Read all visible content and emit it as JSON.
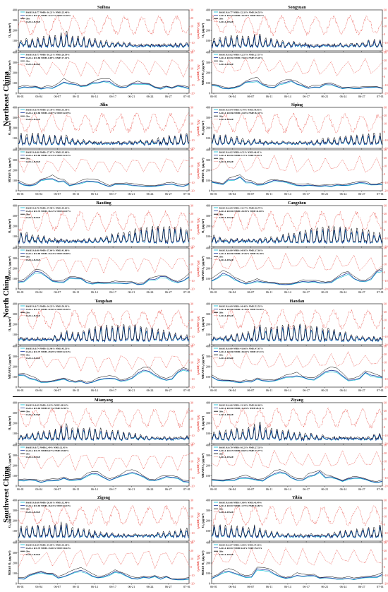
{
  "regions": [
    {
      "name": "Northeast China",
      "cities": [
        "Suihua",
        "Songyuan",
        "Jilin",
        "Siping"
      ]
    },
    {
      "name": "North China",
      "cities": [
        "Baoding",
        "Cangzhou",
        "Tangshan",
        "Handan"
      ]
    },
    {
      "name": "Southwest China",
      "cities": [
        "Mianyang",
        "Ziyang",
        "Zigong",
        "Yibin"
      ]
    }
  ],
  "panels": [
    {
      "city": "Suihua",
      "top_legend": [
        "BASE R:0.77 NMB:-16.21% NME:25.40%",
        "SA1LL R:0.77 NMB:-12.27% NME:24.10%",
        "Obs",
        "SA1LL-BASE"
      ],
      "bottom_legend": [
        "BASE R:0.77 NMB:-16.21% NME:26.59%",
        "SA1LL R:0.80 NMB:-8.09% NME:27.14%",
        "Obs",
        "SA1LL-BASE"
      ]
    },
    {
      "city": "Songyuan",
      "top_legend": [
        "BASE R:0.77 NMB:-22.33% NME:36.53%",
        "SA1LL R:0.78 NMB:-18.54% NME:38.07%",
        "Obs",
        "SA1LL-BASE"
      ],
      "bottom_legend": [
        "BASE R:0.82 NMB:-12.57% NME:27.57%",
        "SA1LL R:0.82 NMB:-7.66% NME:25.20%",
        "Obs",
        "SA1LL-BASE"
      ]
    },
    {
      "city": "Jilin",
      "top_legend": [
        "BASE R:0.78 NMB:-27.39% NME:35.18%",
        "SA1LL R:0.80 NMB:-24.07% NME:42.09%",
        "Obs",
        "SA1LL-BASE"
      ],
      "bottom_legend": [
        "BASE R:0.80 NMB:-27.67% NME:35.00%",
        "SA1LL R:0.80 NMB:-22.23% NME:32.51%",
        "Obs",
        "SA1LL-BASE"
      ]
    },
    {
      "city": "Siping",
      "top_legend": [
        "BASE R:0.84 NMB:-6.79% NME:78.05%",
        "SA1LL R:0.86 NMB:-2.40% NME:82.27%",
        "Obs",
        "SA1LL-BASE"
      ],
      "bottom_legend": [
        "BASE R:0.82 NMB:-0.51% NME:46.41%",
        "SA1LL R:0.82 NMB:2.27% NME:51.76%",
        "Obs",
        "SA1LL-BASE"
      ]
    },
    {
      "city": "Baoding",
      "top_legend": [
        "BASE R:0.76 NMB:-37.98% NME:49.63%",
        "SA1LL R:0.76 NMB:-36.12% NME:44.97%",
        "Obs",
        "SA1LL-BASE"
      ],
      "bottom_legend": [
        "BASE R:0.80 NMB:-37.64% NME:41.80%",
        "SA1LL R:0.80 NMB:-33.44% NME:39.88%",
        "Obs",
        "SA1LL-BASE"
      ]
    },
    {
      "city": "Cangzhou",
      "top_legend": [
        "BASE R:0.69 NMB:-31.17% NME:46.75%",
        "SA1LL R:0.69 NMB:-28.59% NME:41.00%",
        "Obs",
        "SA1LL-BASE"
      ],
      "bottom_legend": [
        "BASE R:0.80 NMB:-34.95% NME:37.03%",
        "SA1LL R:0.80 NMB:-37.65% NME:35.18%",
        "Obs",
        "SA1LL-BASE"
      ]
    },
    {
      "city": "Tangshan",
      "top_legend": [
        "BASE R:0.73 NMB:-34.23% NME:59.91%",
        "SA1LL R:0.73 NMB:-32.90% NME:59.30%",
        "Obs",
        "SA1LL-BASE"
      ],
      "bottom_legend": [
        "BASE R:0.74 NMB:-33.96% NME:45.53%",
        "SA1LL R:0.75 NMB:-29.69% NME:42.54%",
        "Obs",
        "SA1LL-BASE"
      ]
    },
    {
      "city": "Handan",
      "top_legend": [
        "BASE R:0.69 NMB:-34.40% NME:52.53%",
        "SA1LL R:0.69 NMB:-31.45% NME:53.40%",
        "Obs",
        "SA1LL-BASE"
      ],
      "bottom_legend": [
        "BASE R:0.80 NMB:-41.66% NME:47.67%",
        "SA1LL R:0.80 NMB:-38.03% NME:47.31%",
        "Obs",
        "SA1LL-BASE"
      ]
    },
    {
      "city": "Mianyang",
      "top_legend": [
        "BASE R:0.69 NMB:-2.03% NME:38.94%",
        "SA1LL R:0.69 NMB:4.71% NME:32.90%",
        "Obs",
        "SA1LL-BASE"
      ],
      "bottom_legend": [
        "BASE R:0.72 NMB:2.49% NME:32.93%",
        "SA1LL R:0.74 NMB:6.67% NME:29.08%",
        "Obs",
        "SA1LL-BASE"
      ]
    },
    {
      "city": "Ziyang",
      "top_legend": [
        "BASE R:0.66 NMB:-31.36% NME:40.60%",
        "SA1LL R:0.69 NMB:-11.03% NME:28.31%",
        "Obs",
        "SA1LL-BASE"
      ],
      "bottom_legend": [
        "BASE R:0.70 NMB:-10.23% NME:27.33%",
        "SA1LL R:0.70 NMB:-8.60% NME:27.77%",
        "Obs",
        "SA1LL-BASE"
      ]
    },
    {
      "city": "Zigong",
      "top_legend": [
        "BASE R:0.68 NMB:-20.01% NME:32.90%",
        "SA1LL R:0.69 NMB:-16.63% NME:34.03%",
        "Obs",
        "SA1LL-BASE"
      ],
      "bottom_legend": [
        "BASE R:0.69 NMB:-19.09% NME:30.28%",
        "SA1LL R:0.70 NMB:-13.06% NME:30.64%",
        "Obs",
        "SA1LL-BASE"
      ]
    },
    {
      "city": "Yibin",
      "top_legend": [
        "BASE R:0.66 NMB:-1.80% NME:43.99%",
        "SA1LL R:0.67 NMB:-1.75% NME:44.83%",
        "Obs",
        "SA1LL-BASE"
      ],
      "bottom_legend": [
        "BASE R:0.67 NMB:-3.08% NME:37.26%",
        "SA1LL R:0.67 NMB:4.64% NME:35.25%",
        "Obs",
        "SA1LL-BASE"
      ]
    }
  ],
  "axes": {
    "top_ylabel": "O₃ (μg/m³)",
    "bottom_ylabel": "MDA8 O₃ (μg/m³)",
    "right_ylabel": "ΔO₃ (μg/m³)",
    "left_ticks": [
      "0",
      "100",
      "200",
      "300",
      "400"
    ],
    "right_ticks": [
      "-20",
      "-10",
      "0",
      "10",
      "20",
      "30"
    ],
    "x_ticks": [
      "06-01",
      "06-04",
      "06-07",
      "06-11",
      "06-14",
      "06-17",
      "06-21",
      "06-24",
      "06-27",
      "07-01"
    ]
  },
  "colors": {
    "base": "#00bcd4",
    "sa1ll": "#1f3c9e",
    "obs": "#000000",
    "diff": "#e8423a"
  },
  "chart_data": {
    "type": "line",
    "x": [
      "06-01",
      "06-04",
      "06-07",
      "06-11",
      "06-14",
      "06-17",
      "06-21",
      "06-24",
      "06-27",
      "07-01"
    ],
    "ylim_left": [
      0,
      400
    ],
    "ylim_right": [
      -20,
      30
    ],
    "series": [
      {
        "name": "BASE",
        "axis": "left"
      },
      {
        "name": "SA1LL",
        "axis": "left"
      },
      {
        "name": "Obs",
        "axis": "left"
      },
      {
        "name": "SA1LL-BASE",
        "axis": "right"
      }
    ]
  }
}
